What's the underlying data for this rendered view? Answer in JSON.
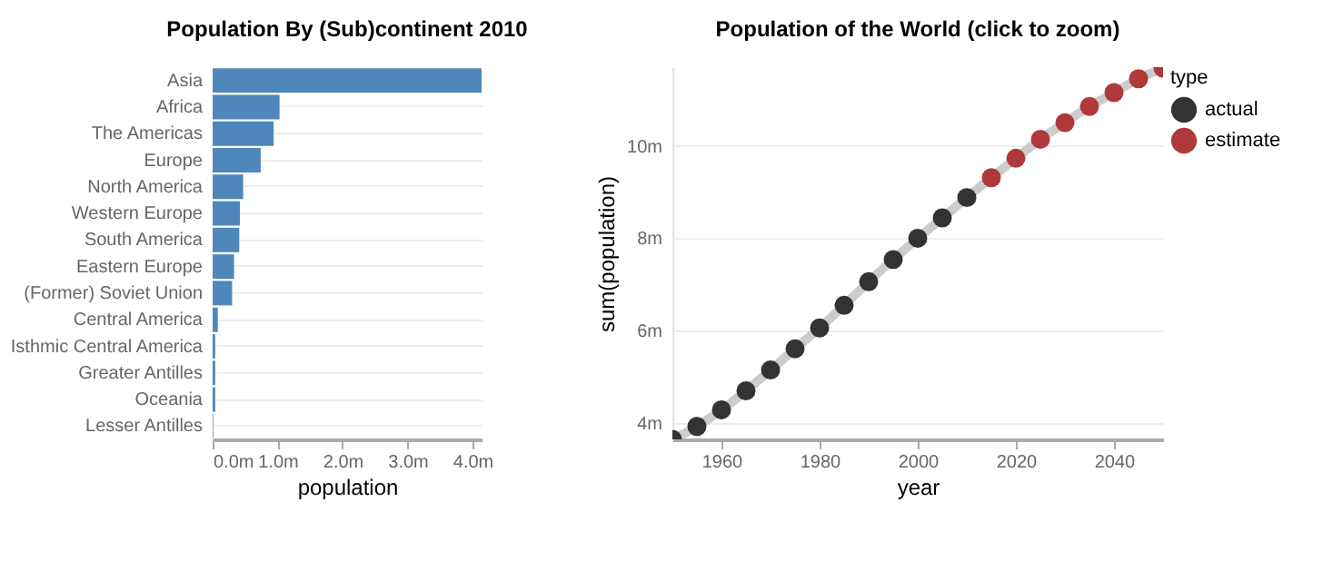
{
  "chart_data": [
    {
      "type": "bar",
      "orientation": "horizontal",
      "title": "Population By (Sub)continent 2010",
      "xlabel": "population",
      "categories": [
        "Asia",
        "Africa",
        "The Americas",
        "Europe",
        "North America",
        "Western Europe",
        "South America",
        "Eastern Europe",
        "(Former) Soviet Union",
        "Central America",
        "Isthmic Central America",
        "Greater Antilles",
        "Oceania",
        "Lesser Antilles"
      ],
      "values": [
        4.14,
        1.03,
        0.94,
        0.74,
        0.47,
        0.42,
        0.41,
        0.33,
        0.3,
        0.08,
        0.04,
        0.04,
        0.04,
        0.01
      ],
      "color": "#4f87ba",
      "xlim": [
        0,
        4.14
      ],
      "xticks": [
        {
          "value": 0,
          "label": "0.0m"
        },
        {
          "value": 1,
          "label": "1.0m"
        },
        {
          "value": 2,
          "label": "2.0m"
        },
        {
          "value": 3,
          "label": "3.0m"
        },
        {
          "value": 4,
          "label": "4.0m"
        }
      ],
      "grid": "y"
    },
    {
      "type": "line",
      "title": "Population of the World (click to zoom)",
      "xlabel": "year",
      "ylabel": "sum(population)",
      "legend_title": "type",
      "xlim": [
        1950,
        2050
      ],
      "xticks": [
        1960,
        1980,
        2000,
        2020,
        2040
      ],
      "ylim": [
        3.65,
        11.7
      ],
      "yticks": [
        {
          "value": 4,
          "label": "4m"
        },
        {
          "value": 6,
          "label": "6m"
        },
        {
          "value": 8,
          "label": "8m"
        },
        {
          "value": 10,
          "label": "10m"
        }
      ],
      "grid": "y",
      "legend": "top right",
      "series": [
        {
          "type": "line",
          "color": "#cccccc",
          "x": [
            1950,
            1955,
            1960,
            1965,
            1970,
            1975,
            1980,
            1985,
            1990,
            1995,
            2000,
            2005,
            2010,
            2015,
            2020,
            2025,
            2030,
            2035,
            2040,
            2045,
            2050
          ],
          "values": [
            3.65,
            3.93,
            4.29,
            4.7,
            5.15,
            5.61,
            6.06,
            6.55,
            7.06,
            7.54,
            8.0,
            8.44,
            8.88,
            9.31,
            9.73,
            10.14,
            10.5,
            10.85,
            11.15,
            11.45,
            11.68
          ]
        },
        {
          "type": "scatter",
          "name": "actual",
          "color": "#333333",
          "x": [
            1950,
            1955,
            1960,
            1965,
            1970,
            1975,
            1980,
            1985,
            1990,
            1995,
            2000,
            2005,
            2010
          ],
          "values": [
            3.65,
            3.93,
            4.29,
            4.7,
            5.15,
            5.61,
            6.06,
            6.55,
            7.06,
            7.54,
            8.0,
            8.44,
            8.88
          ]
        },
        {
          "type": "scatter",
          "name": "estimate",
          "color": "#b0393c",
          "x": [
            2015,
            2020,
            2025,
            2030,
            2035,
            2040,
            2045,
            2050
          ],
          "values": [
            9.31,
            9.73,
            10.14,
            10.5,
            10.85,
            11.15,
            11.45,
            11.68
          ]
        }
      ]
    }
  ]
}
